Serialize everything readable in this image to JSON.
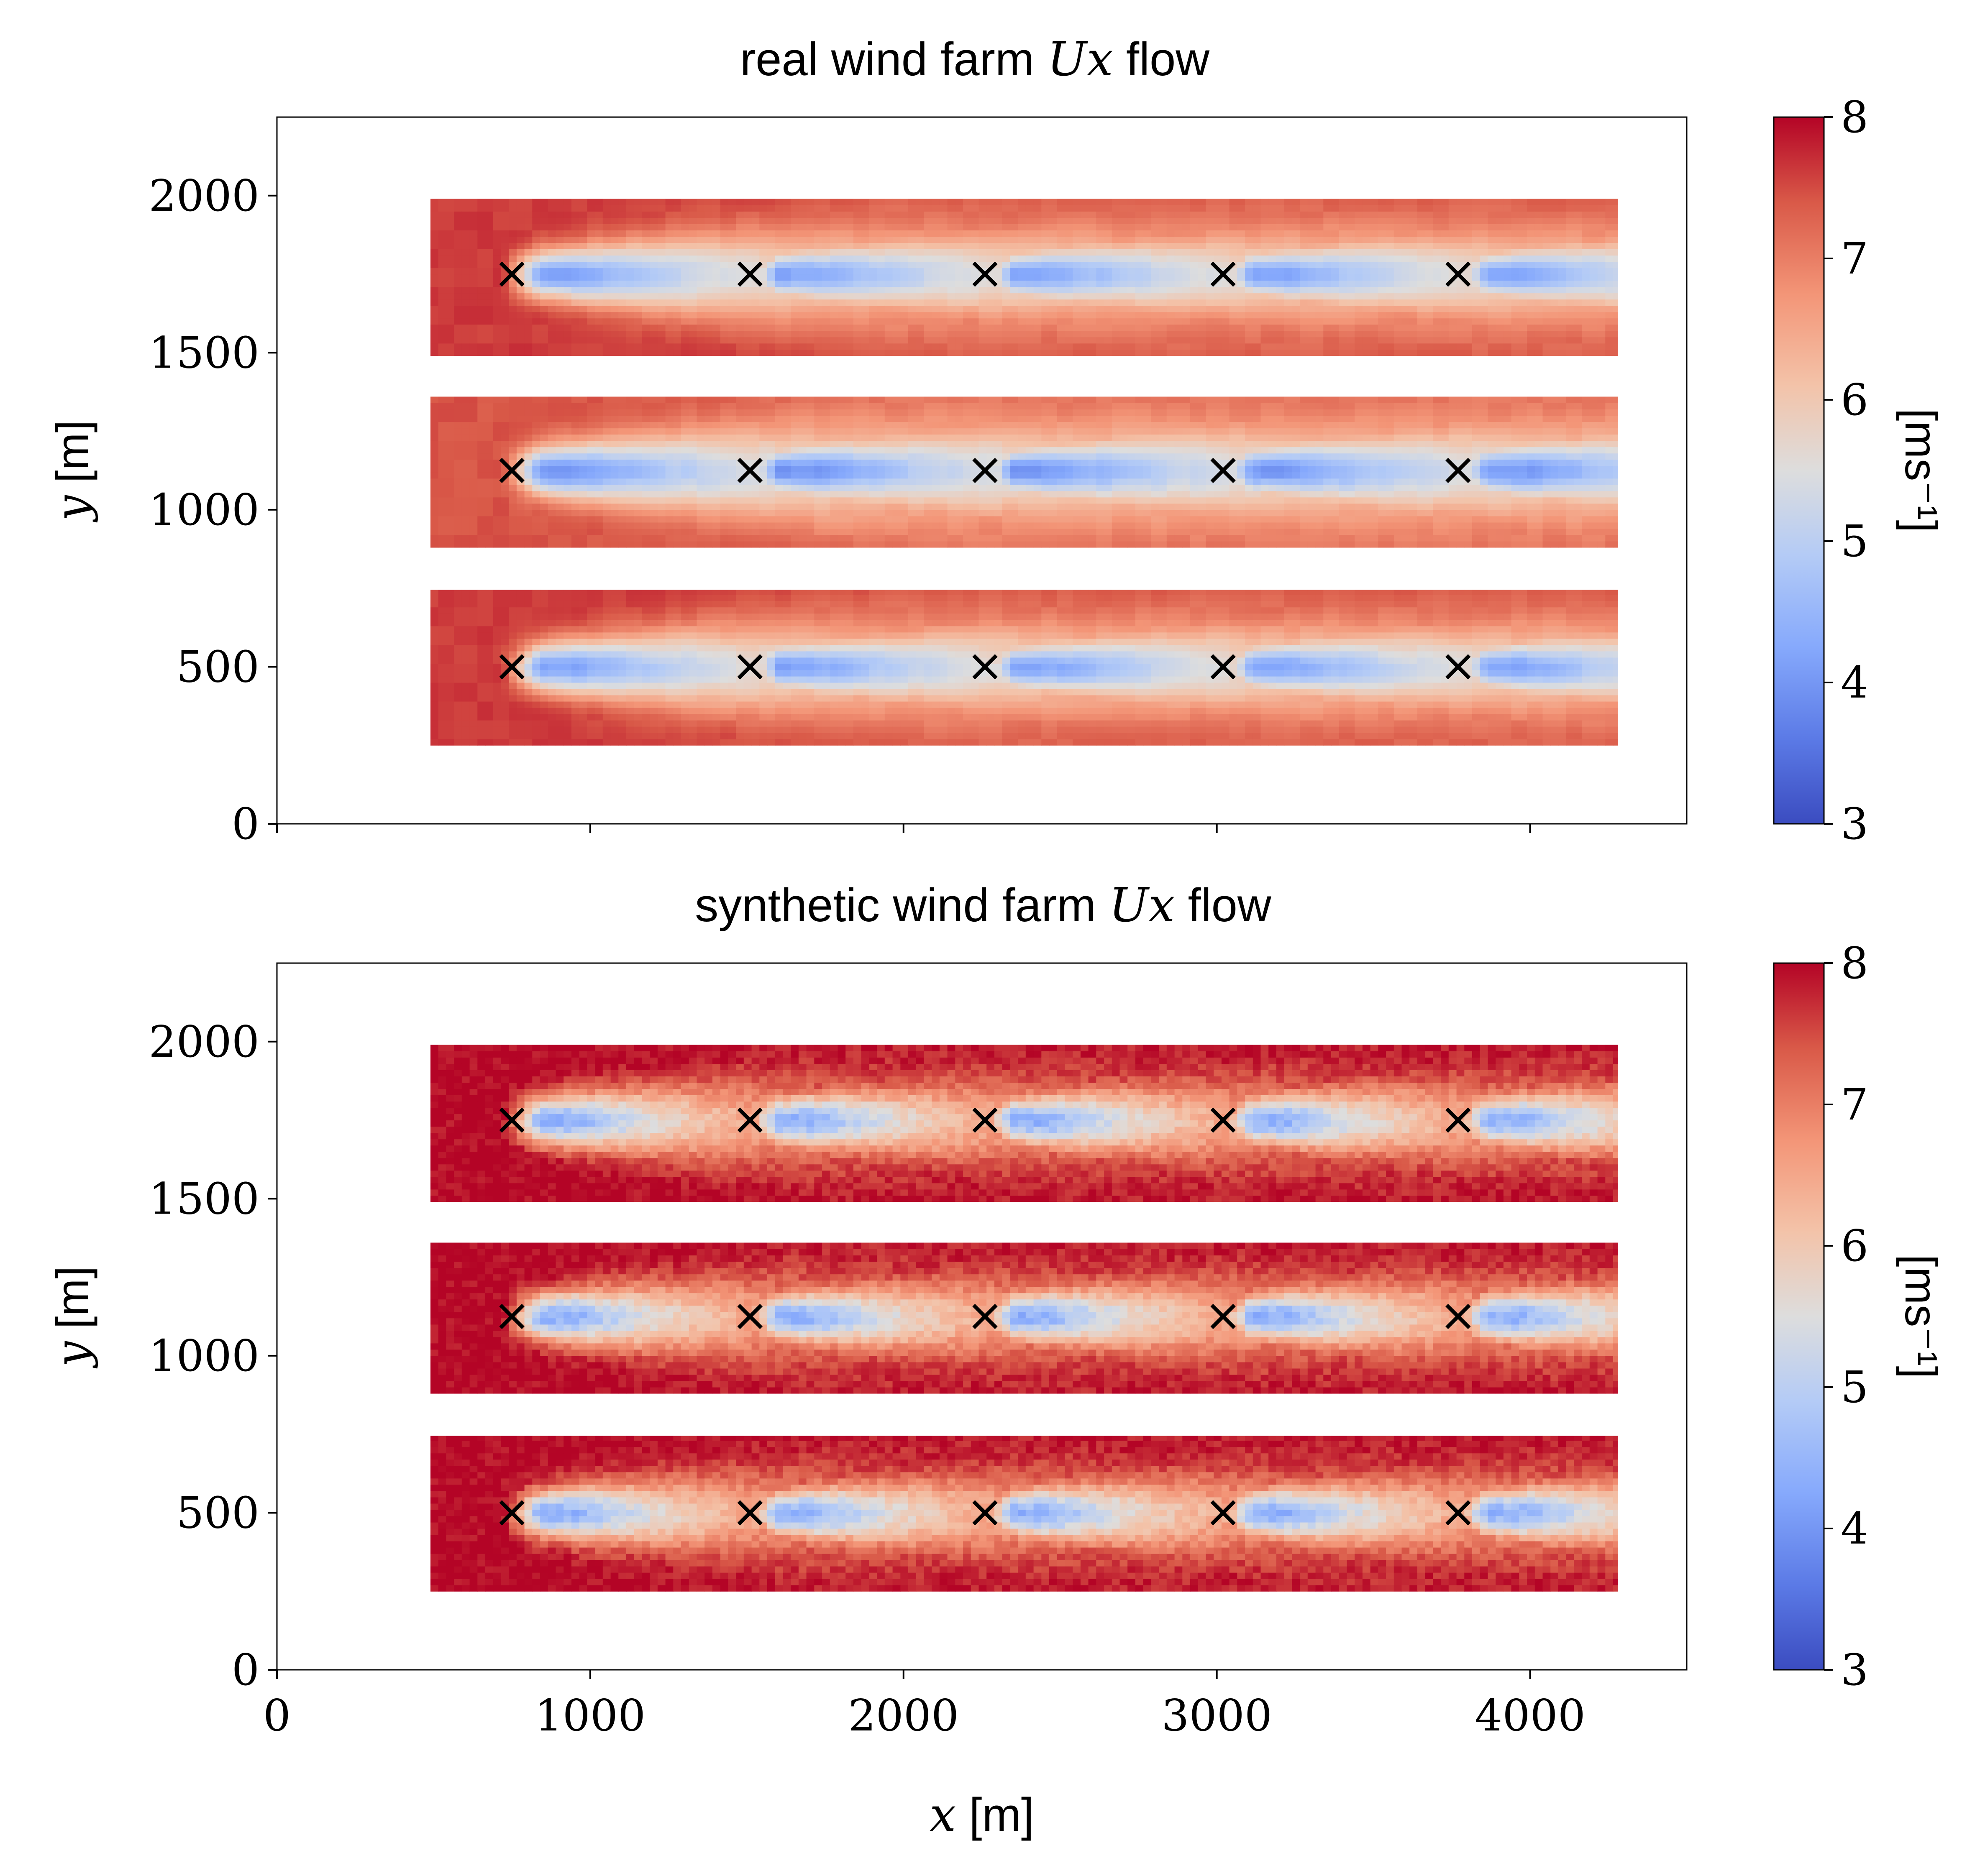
{
  "colors": {
    "cmap_low": "#3b4cc0",
    "cmap_mid": "#dddddd",
    "cmap_high": "#b40426",
    "marker": "#000000",
    "background": "#ffffff"
  },
  "chart_data": [
    {
      "type": "heatmap",
      "title_text": "real wind farm ",
      "title_math": "Ux",
      "title_tail": " flow",
      "xlabel_math": "x",
      "xlabel_unit": " [m]",
      "ylabel_math": "y",
      "ylabel_unit": " [m]",
      "xlim": [
        0,
        4500
      ],
      "ylim": [
        0,
        2250
      ],
      "xticks": [
        0,
        1000,
        2000,
        3000,
        4000
      ],
      "yticks": [
        0,
        500,
        1000,
        1500,
        2000
      ],
      "show_xtick_labels": false,
      "colorbar": {
        "label": "[ms⁻¹]",
        "range": [
          3,
          8
        ],
        "ticks": [
          3,
          4,
          5,
          6,
          7,
          8
        ]
      },
      "strips": [
        {
          "x": [
            490,
            4280
          ],
          "y": [
            1490,
            1990
          ],
          "freestream": 7.6
        },
        {
          "x": [
            490,
            4280
          ],
          "y": [
            880,
            1360
          ],
          "freestream": 7.4
        },
        {
          "x": [
            490,
            4280
          ],
          "y": [
            250,
            745
          ],
          "freestream": 7.6
        }
      ],
      "turbines": [
        {
          "x": 750,
          "y": 1750
        },
        {
          "x": 1510,
          "y": 1750
        },
        {
          "x": 2260,
          "y": 1750
        },
        {
          "x": 3020,
          "y": 1750
        },
        {
          "x": 3770,
          "y": 1750
        },
        {
          "x": 750,
          "y": 1125
        },
        {
          "x": 1510,
          "y": 1125
        },
        {
          "x": 2260,
          "y": 1125
        },
        {
          "x": 3020,
          "y": 1125
        },
        {
          "x": 3770,
          "y": 1125
        },
        {
          "x": 750,
          "y": 500
        },
        {
          "x": 1510,
          "y": 500
        },
        {
          "x": 2260,
          "y": 500
        },
        {
          "x": 3020,
          "y": 500
        },
        {
          "x": 3770,
          "y": 500
        }
      ]
    },
    {
      "type": "heatmap",
      "title_text": "synthetic wind farm ",
      "title_math": "Ux",
      "title_tail": " flow",
      "xlabel_math": "x",
      "xlabel_unit": " [m]",
      "ylabel_math": "y",
      "ylabel_unit": " [m]",
      "xlim": [
        0,
        4500
      ],
      "ylim": [
        0,
        2250
      ],
      "xticks": [
        0,
        1000,
        2000,
        3000,
        4000
      ],
      "yticks": [
        0,
        500,
        1000,
        1500,
        2000
      ],
      "show_xtick_labels": true,
      "colorbar": {
        "label": "[ms⁻¹]",
        "range": [
          3,
          8
        ],
        "ticks": [
          3,
          4,
          5,
          6,
          7,
          8
        ]
      },
      "strips": [
        {
          "x": [
            490,
            4280
          ],
          "y": [
            1490,
            1990
          ],
          "freestream": 8.0
        },
        {
          "x": [
            490,
            4280
          ],
          "y": [
            880,
            1360
          ],
          "freestream": 8.0
        },
        {
          "x": [
            490,
            4280
          ],
          "y": [
            250,
            745
          ],
          "freestream": 8.0
        }
      ],
      "turbines": [
        {
          "x": 750,
          "y": 1750
        },
        {
          "x": 1510,
          "y": 1750
        },
        {
          "x": 2260,
          "y": 1750
        },
        {
          "x": 3020,
          "y": 1750
        },
        {
          "x": 3770,
          "y": 1750
        },
        {
          "x": 750,
          "y": 1125
        },
        {
          "x": 1510,
          "y": 1125
        },
        {
          "x": 2260,
          "y": 1125
        },
        {
          "x": 3020,
          "y": 1125
        },
        {
          "x": 3770,
          "y": 1125
        },
        {
          "x": 750,
          "y": 500
        },
        {
          "x": 1510,
          "y": 500
        },
        {
          "x": 2260,
          "y": 500
        },
        {
          "x": 3020,
          "y": 500
        },
        {
          "x": 3770,
          "y": 500
        }
      ]
    }
  ]
}
